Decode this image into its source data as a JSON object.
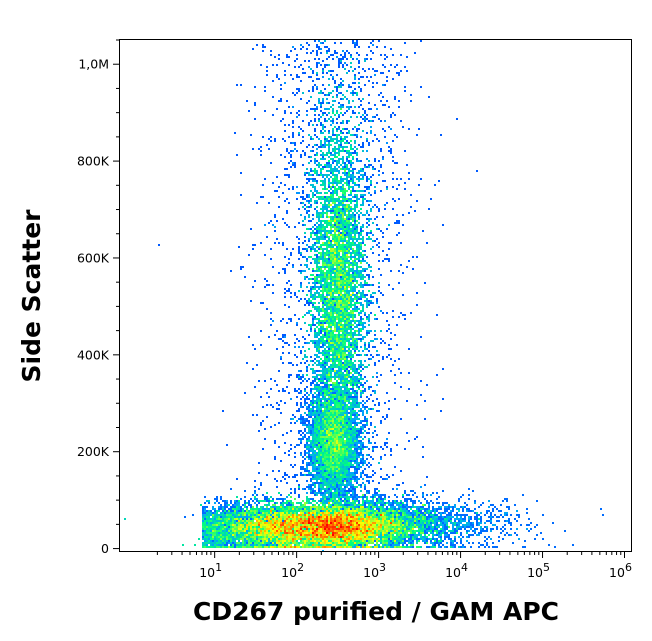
{
  "chart_data": {
    "type": "scatter",
    "plot_style": "flow cytometry density dot plot",
    "xlabel": "CD267 purified / GAM APC",
    "ylabel": "Side Scatter",
    "x_scale": "log",
    "xlim": [
      0.7,
      1200000
    ],
    "x_ticks": [
      {
        "value": 10,
        "base": "10",
        "exp": "1"
      },
      {
        "value": 100,
        "base": "10",
        "exp": "2"
      },
      {
        "value": 1000,
        "base": "10",
        "exp": "3"
      },
      {
        "value": 10000,
        "base": "10",
        "exp": "4"
      },
      {
        "value": 100000,
        "base": "10",
        "exp": "5"
      },
      {
        "value": 1000000,
        "base": "10",
        "exp": "6"
      }
    ],
    "y_scale": "linear",
    "ylim": [
      -5000,
      1050000
    ],
    "y_ticks": [
      {
        "value": 0,
        "label": "0"
      },
      {
        "value": 200000,
        "label": "200K"
      },
      {
        "value": 400000,
        "label": "400K"
      },
      {
        "value": 600000,
        "label": "600K"
      },
      {
        "value": 800000,
        "label": "800K"
      },
      {
        "value": 1000000,
        "label": "1,0M"
      }
    ],
    "grid": false,
    "colormap": [
      "#0000ff",
      "#00a0ff",
      "#00ff80",
      "#ffff00",
      "#ff0000"
    ],
    "populations": [
      {
        "x_center": 200,
        "y_center": 45000,
        "x_spread_decades": 0.5,
        "y_spread": 22000,
        "density": "highest"
      },
      {
        "x_center": 320,
        "y_center": 540000,
        "x_spread_decades": 0.16,
        "y_spread": 160000,
        "density": "high"
      },
      {
        "x_center": 280,
        "y_center": 215000,
        "x_spread_decades": 0.15,
        "y_spread": 55000,
        "density": "medium"
      }
    ]
  }
}
